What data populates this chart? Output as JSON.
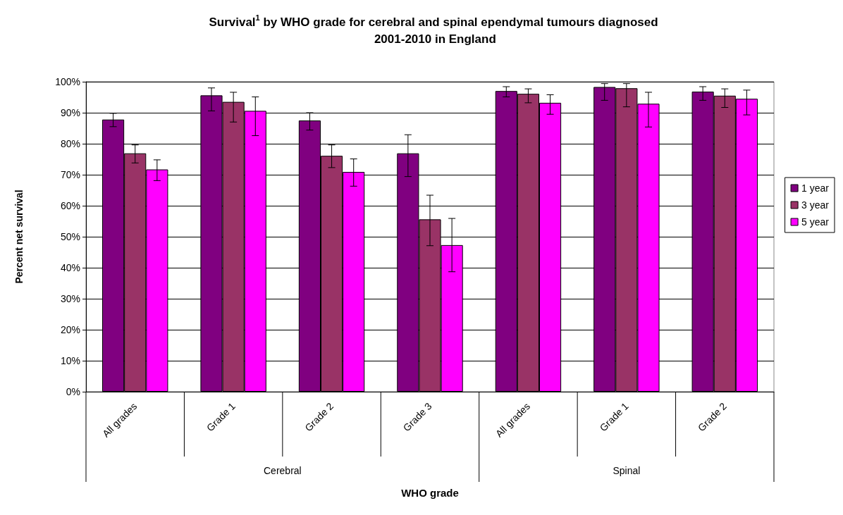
{
  "chart_data": {
    "type": "bar",
    "title": "Survival$^{1}$ by WHO grade for cerebral and spinal ependymal tumours diagnosed 2001-2010 in England",
    "xlabel": "WHO grade",
    "ylabel": "Percent net survival",
    "categories": [
      "All grades",
      "Grade 1",
      "Grade 2",
      "Grade 3",
      "All grades",
      "Grade 1",
      "Grade 2"
    ],
    "annotations": [
      "Cerebral",
      "Spinal"
    ],
    "series": [
      {
        "name": "1 year",
        "color": "#800080",
        "values": [
          87.8,
          95.6,
          87.5,
          76.9,
          97.0,
          98.3,
          96.8
        ],
        "errors": [
          [
            85.5,
            89.8
          ],
          [
            90.6,
            98.0
          ],
          [
            84.4,
            90.0
          ],
          [
            69.4,
            82.9
          ],
          [
            95.1,
            98.4
          ],
          [
            94.0,
            99.4
          ],
          [
            94.0,
            98.4
          ]
        ]
      },
      {
        "name": "3 year",
        "color": "#993366",
        "values": [
          76.9,
          93.5,
          76.1,
          55.6,
          96.1,
          97.9,
          95.5
        ],
        "errors": [
          [
            73.8,
            79.6
          ],
          [
            87.0,
            96.6
          ],
          [
            72.3,
            79.6
          ],
          [
            47.1,
            63.4
          ],
          [
            93.2,
            97.7
          ],
          [
            91.9,
            99.4
          ],
          [
            91.7,
            97.7
          ]
        ]
      },
      {
        "name": "5 year",
        "color": "#ff00ff",
        "values": [
          71.7,
          90.6,
          70.9,
          47.3,
          93.2,
          92.9,
          94.5
        ],
        "errors": [
          [
            68.1,
            74.8
          ],
          [
            82.6,
            95.1
          ],
          [
            66.3,
            75.1
          ],
          [
            38.7,
            55.9
          ],
          [
            89.5,
            95.8
          ],
          [
            85.4,
            96.6
          ],
          [
            89.3,
            97.3
          ]
        ]
      }
    ],
    "ylim": [
      0,
      100
    ],
    "yticks": [
      {
        "value": 0,
        "label": "0%"
      },
      {
        "value": 10,
        "label": "10%"
      },
      {
        "value": 20,
        "label": "20%"
      },
      {
        "value": 30,
        "label": "30%"
      },
      {
        "value": 40,
        "label": "40%"
      },
      {
        "value": 50,
        "label": "50%"
      },
      {
        "value": 60,
        "label": "60%"
      },
      {
        "value": 70,
        "label": "70%"
      },
      {
        "value": 80,
        "label": "80%"
      },
      {
        "value": 90,
        "label": "90%"
      },
      {
        "value": 100,
        "label": "100%"
      }
    ],
    "grid": "y",
    "legend": "right"
  }
}
